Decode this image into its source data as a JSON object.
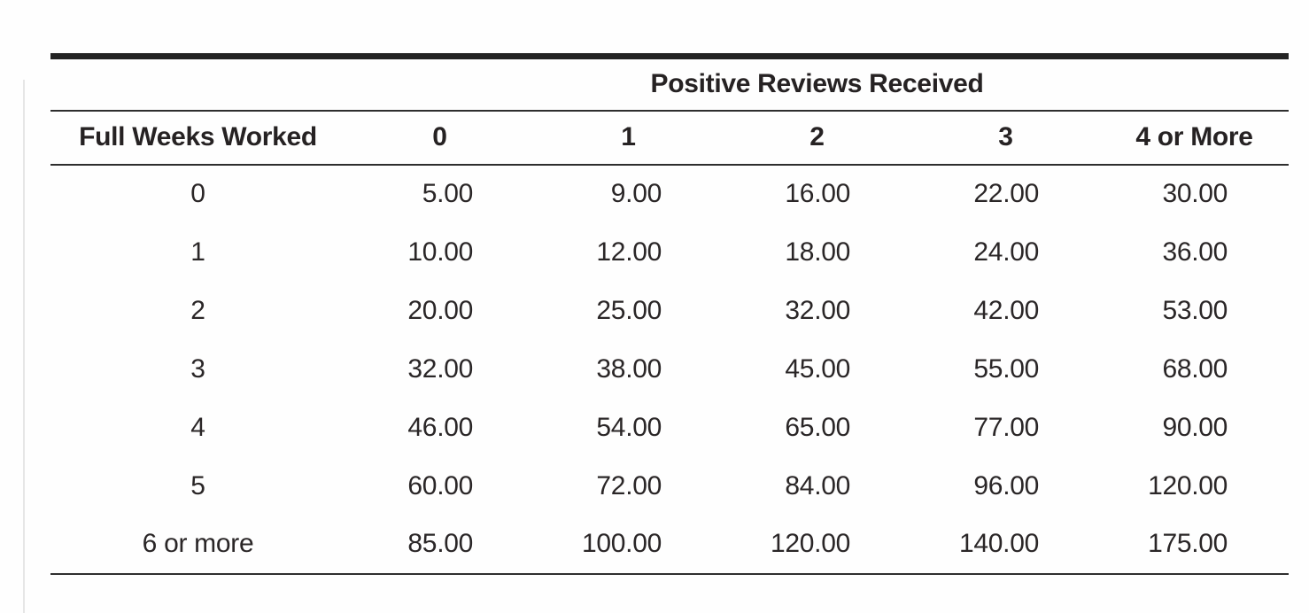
{
  "table": {
    "spanner_header": "Positive Reviews Received",
    "corner_header": "Full Weeks Worked",
    "column_headers": [
      "0",
      "1",
      "2",
      "3",
      "4 or More"
    ],
    "rows": [
      {
        "label": "0",
        "values": [
          "5.00",
          "9.00",
          "16.00",
          "22.00",
          "30.00"
        ]
      },
      {
        "label": "1",
        "values": [
          "10.00",
          "12.00",
          "18.00",
          "24.00",
          "36.00"
        ]
      },
      {
        "label": "2",
        "values": [
          "20.00",
          "25.00",
          "32.00",
          "42.00",
          "53.00"
        ]
      },
      {
        "label": "3",
        "values": [
          "32.00",
          "38.00",
          "45.00",
          "55.00",
          "68.00"
        ]
      },
      {
        "label": "4",
        "values": [
          "46.00",
          "54.00",
          "65.00",
          "77.00",
          "90.00"
        ]
      },
      {
        "label": "5",
        "values": [
          "60.00",
          "72.00",
          "84.00",
          "96.00",
          "120.00"
        ]
      },
      {
        "label": "6 or more",
        "values": [
          "85.00",
          "100.00",
          "120.00",
          "140.00",
          "175.00"
        ]
      }
    ]
  },
  "colors": {
    "text": "#2a2627",
    "rule_heavy": "#242424",
    "rule_light": "#2e2e2e",
    "page_edge": "#e6e6e6",
    "background": "#fefefe"
  }
}
